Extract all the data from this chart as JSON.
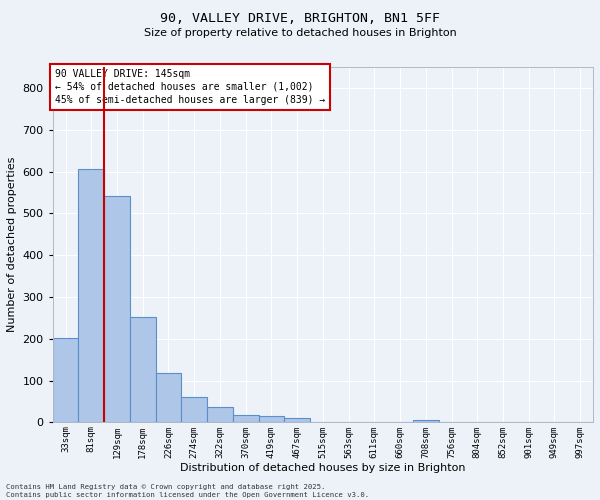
{
  "title_line1": "90, VALLEY DRIVE, BRIGHTON, BN1 5FF",
  "title_line2": "Size of property relative to detached houses in Brighton",
  "xlabel": "Distribution of detached houses by size in Brighton",
  "ylabel": "Number of detached properties",
  "bar_labels": [
    "33sqm",
    "81sqm",
    "129sqm",
    "178sqm",
    "226sqm",
    "274sqm",
    "322sqm",
    "370sqm",
    "419sqm",
    "467sqm",
    "515sqm",
    "563sqm",
    "611sqm",
    "660sqm",
    "708sqm",
    "756sqm",
    "804sqm",
    "852sqm",
    "901sqm",
    "949sqm",
    "997sqm"
  ],
  "bar_values": [
    203,
    605,
    542,
    251,
    118,
    60,
    36,
    18,
    15,
    10,
    2,
    0,
    0,
    0,
    5,
    0,
    0,
    0,
    0,
    0,
    0
  ],
  "bar_color": "#aec6e8",
  "bar_edge_color": "#5b8fc9",
  "vline_x": 2.0,
  "vline_color": "#cc0000",
  "annotation_title": "90 VALLEY DRIVE: 145sqm",
  "annotation_line1": "← 54% of detached houses are smaller (1,002)",
  "annotation_line2": "45% of semi-detached houses are larger (839) →",
  "annotation_box_color": "#cc0000",
  "ylim": [
    0,
    850
  ],
  "yticks": [
    0,
    100,
    200,
    300,
    400,
    500,
    600,
    700,
    800
  ],
  "background_color": "#edf2f9",
  "grid_color": "#ffffff",
  "footer_line1": "Contains HM Land Registry data © Crown copyright and database right 2025.",
  "footer_line2": "Contains public sector information licensed under the Open Government Licence v3.0."
}
